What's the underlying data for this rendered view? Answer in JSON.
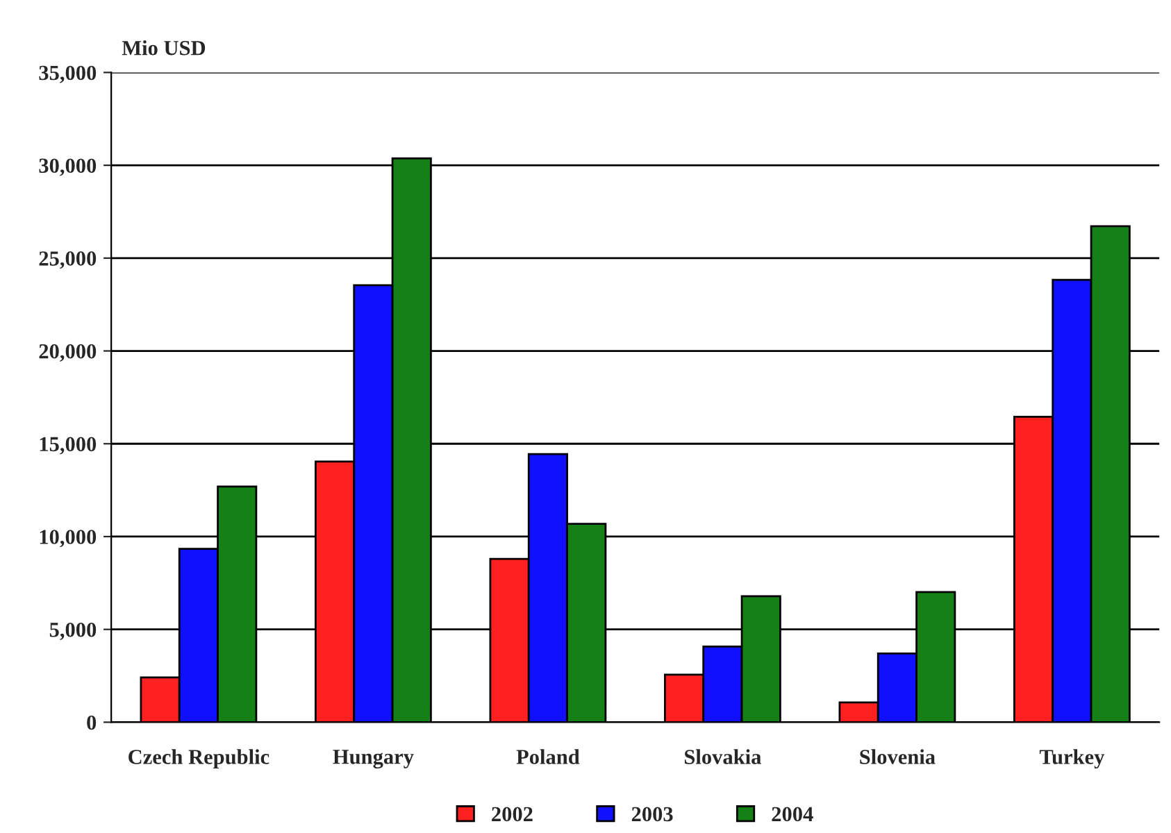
{
  "chart_data": {
    "type": "bar",
    "ylabel": "Mio USD",
    "categories": [
      "Czech Republic",
      "Hungary",
      "Poland",
      "Slovakia",
      "Slovenia",
      "Turkey"
    ],
    "series": [
      {
        "name": "2002",
        "color": "#ff2020",
        "values": [
          2410,
          14040,
          8800,
          2560,
          1070,
          16450
        ]
      },
      {
        "name": "2003",
        "color": "#1010ff",
        "values": [
          9340,
          23540,
          14440,
          4080,
          3700,
          23830
        ]
      },
      {
        "name": "2004",
        "color": "#158015",
        "values": [
          12700,
          30370,
          10690,
          6790,
          7010,
          26720
        ]
      }
    ],
    "ylim": [
      0,
      35000
    ],
    "yticks": [
      {
        "value": 0,
        "label": "0"
      },
      {
        "value": 5000,
        "label": "5,000"
      },
      {
        "value": 10000,
        "label": "10,000"
      },
      {
        "value": 15000,
        "label": "15,000"
      },
      {
        "value": 20000,
        "label": "20,000"
      },
      {
        "value": 25000,
        "label": "25,000"
      },
      {
        "value": 30000,
        "label": "30,000"
      },
      {
        "value": 35000,
        "label": "35,000"
      }
    ],
    "grid": "y",
    "legend": "bottom"
  }
}
